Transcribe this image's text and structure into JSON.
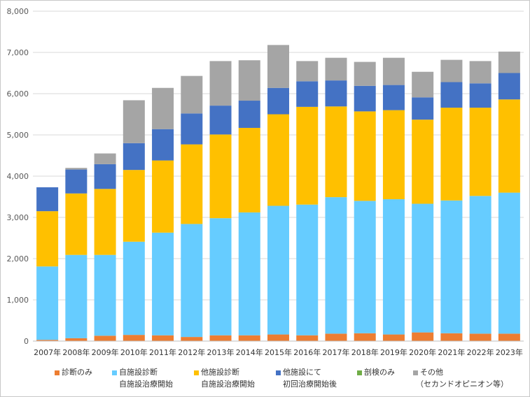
{
  "chart_data": {
    "type": "bar",
    "stacked": true,
    "categories": [
      "2007年",
      "2008年",
      "2009年",
      "2010年",
      "2011年",
      "2012年",
      "2013年",
      "2014年",
      "2015年",
      "2016年",
      "2017年",
      "2018年",
      "2019年",
      "2020年",
      "2021年",
      "2022年",
      "2023年"
    ],
    "series": [
      {
        "name": "診断のみ",
        "color": "#ED7D31",
        "values": [
          30,
          70,
          130,
          150,
          140,
          100,
          140,
          140,
          160,
          140,
          180,
          190,
          160,
          210,
          190,
          180,
          180
        ]
      },
      {
        "name": "自施設診断",
        "name_line2": "自施設治療開始",
        "color": "#66CCFF",
        "values": [
          1780,
          2020,
          1960,
          2260,
          2490,
          2740,
          2840,
          2980,
          3120,
          3170,
          3310,
          3210,
          3280,
          3120,
          3220,
          3340,
          3420
        ]
      },
      {
        "name": "他施設診断",
        "name_line2": "自施設治療開始",
        "color": "#FFC000",
        "values": [
          1340,
          1490,
          1600,
          1740,
          1750,
          1930,
          2030,
          2050,
          2220,
          2370,
          2200,
          2170,
          2160,
          2040,
          2250,
          2140,
          2260
        ]
      },
      {
        "name": "他施設にて",
        "name_line2": "初回治療開始後",
        "color": "#4472C4",
        "values": [
          580,
          580,
          600,
          650,
          760,
          750,
          700,
          660,
          640,
          620,
          630,
          620,
          610,
          540,
          620,
          590,
          640
        ]
      },
      {
        "name": "剖検のみ",
        "color": "#70AD47",
        "values": [
          0,
          0,
          0,
          0,
          0,
          0,
          0,
          0,
          0,
          0,
          0,
          0,
          0,
          0,
          0,
          0,
          0
        ]
      },
      {
        "name": "その他",
        "name_line2": "（セカンドオピニオン等）",
        "color": "#A5A5A5",
        "values": [
          0,
          40,
          260,
          1040,
          1000,
          910,
          1080,
          980,
          1040,
          490,
          550,
          580,
          660,
          620,
          540,
          540,
          520
        ]
      }
    ],
    "ylim": [
      0,
      8000
    ],
    "yticks": [
      "0",
      "1,000",
      "2,000",
      "3,000",
      "4,000",
      "5,000",
      "6,000",
      "7,000",
      "8,000"
    ],
    "grid": true,
    "legend_position": "bottom"
  }
}
